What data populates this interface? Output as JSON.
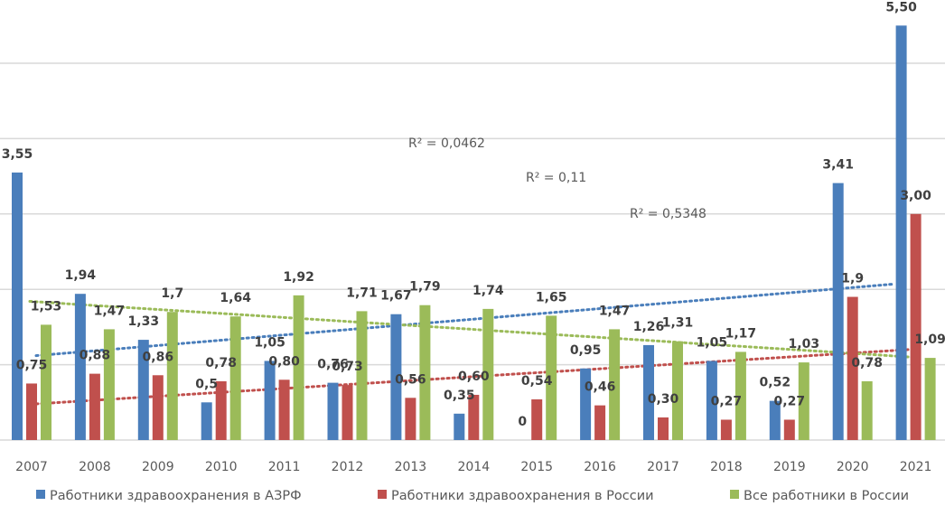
{
  "chart_data": {
    "type": "bar",
    "title": "",
    "xlabel": "",
    "ylabel": "",
    "ylim": [
      0,
      5.5
    ],
    "grid": true,
    "gridlines": [
      0,
      1,
      2,
      3,
      4,
      5
    ],
    "legend_position": "bottom",
    "categories": [
      "2007",
      "2008",
      "2009",
      "2010",
      "2011",
      "2012",
      "2013",
      "2014",
      "2015",
      "2016",
      "2017",
      "2018",
      "2019",
      "2020",
      "2021"
    ],
    "series": [
      {
        "name": "Работники здравоохранения в АЗРФ",
        "color": "#4a7ebb",
        "values": [
          3.55,
          1.94,
          1.33,
          0.5,
          1.05,
          0.76,
          1.67,
          0.35,
          0,
          0.95,
          1.26,
          1.05,
          0.52,
          3.41,
          5.5
        ],
        "labels": [
          "3,55",
          "1,94",
          "1,33",
          "0,5",
          "1,05",
          "0,76",
          "1,67",
          "0,35",
          "0",
          "0,95",
          "1,26",
          "1,05",
          "0,52",
          "3,41",
          "5,50"
        ],
        "trendline": {
          "type": "linear",
          "start": 1.12,
          "end": 2.07,
          "r2_label": "R² = 0,11"
        }
      },
      {
        "name": "Работники здравоохранения в России",
        "color": "#c0504d",
        "values": [
          0.75,
          0.88,
          0.86,
          0.78,
          0.8,
          0.73,
          0.56,
          0.6,
          0.54,
          0.46,
          0.3,
          0.27,
          0.27,
          1.9,
          3.0
        ],
        "labels": [
          "0,75",
          "0,88",
          "0,86",
          "0,78",
          "0,80",
          "0,73",
          "0,56",
          "0,60",
          "0,54",
          "0,46",
          "0,30",
          "0,27",
          "0,27",
          "1,9",
          "3,00"
        ],
        "trendline": {
          "type": "linear",
          "start": 0.48,
          "end": 1.2,
          "r2_label": "R² = 0,5348"
        }
      },
      {
        "name": "Все работники в России",
        "color": "#9bbb59",
        "values": [
          1.53,
          1.47,
          1.7,
          1.64,
          1.92,
          1.71,
          1.79,
          1.74,
          1.65,
          1.47,
          1.31,
          1.17,
          1.03,
          0.78,
          1.09
        ],
        "labels": [
          "1,53",
          "1,47",
          "1,7",
          "1,64",
          "1,92",
          "1,71",
          "1,79",
          "1,74",
          "1,65",
          "1,47",
          "1,31",
          "1,17",
          "1,03",
          "0,78",
          "1,09"
        ],
        "trendline": {
          "type": "linear",
          "start": 1.84,
          "end": 1.1,
          "r2_label": "R² = 0,0462"
        }
      }
    ]
  },
  "r2_labels": [
    "R² = 0,0462",
    "R² = 0,11",
    "R² = 0,5348"
  ],
  "legend": [
    {
      "label": "Работники здравоохранения в АЗРФ",
      "color": "#4a7ebb"
    },
    {
      "label": "Работники здравоохранения в России",
      "color": "#c0504d"
    },
    {
      "label": "Все работники в России",
      "color": "#9bbb59"
    }
  ]
}
